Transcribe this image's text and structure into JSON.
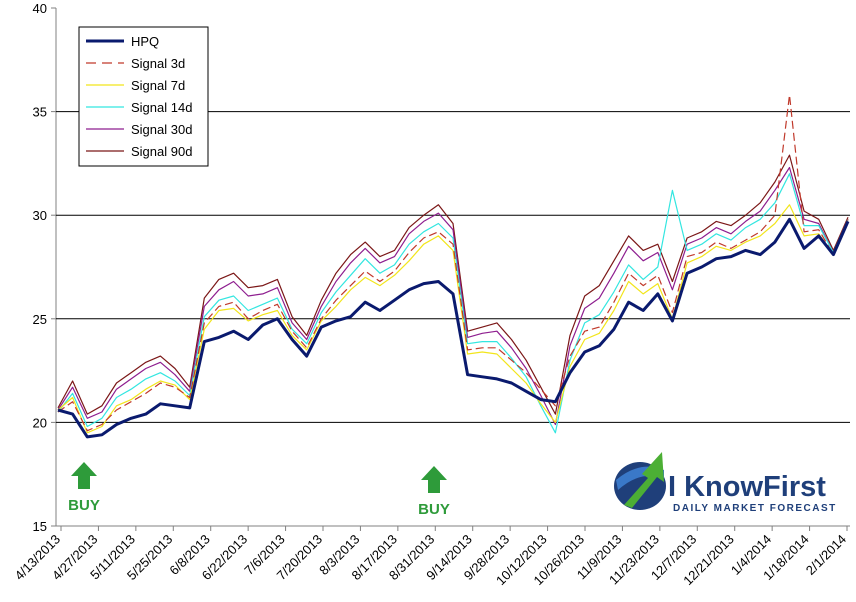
{
  "chart_data": {
    "type": "line",
    "title": "",
    "xlabel": "",
    "ylabel": "",
    "ylim": [
      15,
      40
    ],
    "yticks": [
      15,
      20,
      25,
      30,
      35,
      40
    ],
    "x_labels": [
      "4/13/2013",
      "4/27/2013",
      "5/11/2013",
      "5/25/2013",
      "6/8/2013",
      "6/22/2013",
      "7/6/2013",
      "7/20/2013",
      "8/3/2013",
      "8/17/2013",
      "8/31/2013",
      "9/14/2013",
      "9/28/2013",
      "10/12/2013",
      "10/26/2013",
      "11/9/2013",
      "11/23/2013",
      "12/7/2013",
      "12/21/2013",
      "1/4/2014",
      "1/18/2014",
      "2/1/2014"
    ],
    "grid": true,
    "legend_position": "top-left",
    "series": [
      {
        "name": "HPQ",
        "color": "#0a1a6e",
        "style": "solid-bold",
        "values": [
          20.6,
          20.4,
          19.3,
          19.4,
          19.9,
          20.2,
          20.4,
          20.9,
          20.8,
          20.7,
          23.9,
          24.1,
          24.4,
          24.0,
          24.7,
          25.0,
          24.0,
          23.2,
          24.6,
          24.9,
          25.1,
          25.8,
          25.4,
          25.9,
          26.4,
          26.7,
          26.8,
          26.2,
          22.3,
          22.2,
          22.1,
          21.9,
          21.5,
          21.1,
          21.0,
          22.4,
          23.4,
          23.7,
          24.5,
          25.8,
          25.4,
          26.2,
          24.9,
          27.2,
          27.5,
          27.9,
          28.0,
          28.3,
          28.1,
          28.7,
          29.8,
          28.4,
          29.0,
          28.1,
          29.7
        ]
      },
      {
        "name": "Signal 3d",
        "color": "#c0392b",
        "style": "dashed",
        "values": [
          20.5,
          21.0,
          19.6,
          19.9,
          20.6,
          21.0,
          21.4,
          21.9,
          21.7,
          21.2,
          24.8,
          25.6,
          25.8,
          25.0,
          25.4,
          25.7,
          24.4,
          23.6,
          25.0,
          25.9,
          26.6,
          27.3,
          26.8,
          27.3,
          28.2,
          28.9,
          29.2,
          28.6,
          23.5,
          23.6,
          23.6,
          23.0,
          22.4,
          21.6,
          20.8,
          23.2,
          24.4,
          24.6,
          25.8,
          27.2,
          26.6,
          27.1,
          25.3,
          28.0,
          28.2,
          28.7,
          28.4,
          28.8,
          29.2,
          30.0,
          35.8,
          29.2,
          29.3,
          28.1,
          29.8
        ]
      },
      {
        "name": "Signal 7d",
        "color": "#f2e51b",
        "style": "solid",
        "values": [
          20.6,
          21.2,
          19.5,
          19.8,
          20.8,
          21.1,
          21.6,
          22.0,
          21.8,
          21.1,
          24.5,
          25.4,
          25.5,
          24.9,
          25.2,
          25.4,
          24.2,
          23.5,
          24.9,
          25.6,
          26.4,
          27.0,
          26.6,
          27.1,
          27.8,
          28.6,
          29.0,
          28.3,
          23.3,
          23.4,
          23.3,
          22.6,
          21.9,
          20.9,
          20.0,
          22.7,
          24.0,
          24.3,
          25.4,
          26.8,
          26.2,
          26.7,
          25.0,
          27.7,
          28.0,
          28.5,
          28.3,
          28.7,
          29.0,
          29.6,
          30.5,
          29.0,
          29.1,
          28.1,
          29.7
        ]
      },
      {
        "name": "Signal 14d",
        "color": "#33e6e0",
        "style": "solid",
        "values": [
          20.5,
          21.4,
          19.8,
          20.2,
          21.2,
          21.6,
          22.1,
          22.4,
          22.0,
          21.3,
          25.1,
          25.9,
          26.1,
          25.4,
          25.7,
          26.0,
          24.5,
          23.8,
          25.3,
          26.3,
          27.1,
          27.9,
          27.2,
          27.6,
          28.6,
          29.2,
          29.6,
          28.9,
          23.8,
          23.9,
          23.9,
          23.1,
          22.2,
          20.8,
          19.5,
          23.0,
          24.8,
          25.2,
          26.3,
          27.6,
          26.9,
          27.5,
          31.2,
          28.3,
          28.6,
          29.1,
          28.8,
          29.4,
          29.8,
          30.6,
          32.0,
          29.5,
          29.5,
          28.2,
          29.8
        ]
      },
      {
        "name": "Signal 30d",
        "color": "#8e1e8f",
        "style": "solid",
        "values": [
          20.6,
          21.7,
          20.2,
          20.5,
          21.6,
          22.1,
          22.6,
          22.9,
          22.3,
          21.5,
          25.6,
          26.4,
          26.8,
          26.1,
          26.2,
          26.5,
          24.8,
          24.0,
          25.6,
          26.8,
          27.7,
          28.4,
          27.7,
          28.0,
          29.1,
          29.7,
          30.1,
          29.3,
          24.1,
          24.3,
          24.4,
          23.6,
          22.6,
          21.3,
          19.9,
          23.7,
          25.5,
          26.0,
          27.2,
          28.5,
          27.8,
          28.2,
          26.4,
          28.6,
          28.9,
          29.4,
          29.1,
          29.7,
          30.2,
          31.2,
          32.3,
          29.8,
          29.6,
          28.2,
          29.8
        ]
      },
      {
        "name": "Signal 90d",
        "color": "#7b1717",
        "style": "solid",
        "values": [
          20.7,
          22.0,
          20.4,
          20.8,
          21.9,
          22.4,
          22.9,
          23.2,
          22.6,
          21.7,
          26.0,
          26.9,
          27.2,
          26.5,
          26.6,
          26.9,
          25.1,
          24.2,
          25.9,
          27.2,
          28.1,
          28.7,
          28.0,
          28.3,
          29.4,
          30.0,
          30.5,
          29.6,
          24.4,
          24.6,
          24.8,
          24.0,
          23.0,
          21.7,
          20.4,
          24.2,
          26.1,
          26.6,
          27.8,
          29.0,
          28.3,
          28.6,
          26.8,
          28.9,
          29.2,
          29.7,
          29.5,
          30.0,
          30.6,
          31.6,
          32.9,
          30.2,
          29.8,
          28.3,
          29.9
        ]
      }
    ],
    "annotations": [
      {
        "text": "BUY",
        "at_label": "4/27/2013",
        "near_value": 17.5
      },
      {
        "text": "BUY",
        "at_label": "9/14/2013",
        "near_value": 17.5
      }
    ]
  },
  "logo": {
    "main": "I KnowFirst",
    "sub": "Daily Market Forecast",
    "colors": {
      "navy": "#1f3f7a",
      "green": "#4caf35",
      "blue": "#3a78c8"
    }
  },
  "colors": {
    "grid": "#000000",
    "axis": "#808080",
    "buy_arrow": "#2e9b3a"
  }
}
